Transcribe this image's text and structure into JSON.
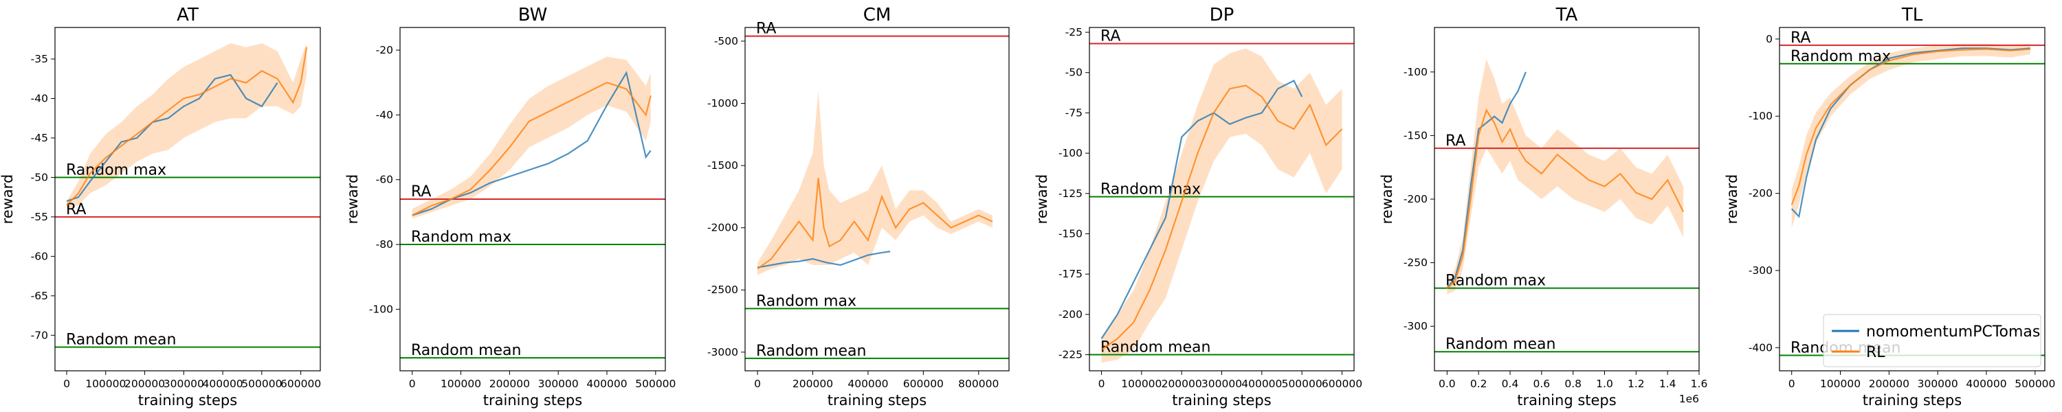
{
  "legend": [
    {
      "name": "nomomentumPCTomas",
      "color": "#1f77b4"
    },
    {
      "name": "RL",
      "color": "#ff7f0e"
    }
  ],
  "chart_data": [
    {
      "type": "line",
      "title": "AT",
      "xlabel": "training steps",
      "ylabel": "reward",
      "xlim": [
        -30000,
        650000
      ],
      "ylim": [
        -74.5,
        -31
      ],
      "xticks": [
        0,
        100000,
        200000,
        300000,
        400000,
        500000,
        600000
      ],
      "xtick_labels": [
        "0",
        "100000",
        "200000",
        "300000",
        "400000",
        "500000",
        "600000"
      ],
      "yticks": [
        -35,
        -40,
        -45,
        -50,
        -55,
        -60,
        -65,
        -70
      ],
      "ytick_labels": [
        "-35",
        "-40",
        "-45",
        "-50",
        "-55",
        "-60",
        "-65",
        "-70"
      ],
      "hlines": [
        {
          "label": "Random max",
          "y": -50.0,
          "color": "#008000"
        },
        {
          "label": "RA",
          "y": -55.0,
          "color": "#d62728"
        },
        {
          "label": "Random mean",
          "y": -71.5,
          "color": "#008000"
        }
      ],
      "series": [
        {
          "name": "nomomentumPCTomas",
          "color": "#1f77b4",
          "x": [
            0,
            30000,
            60000,
            100000,
            140000,
            180000,
            220000,
            260000,
            300000,
            340000,
            380000,
            420000,
            460000,
            500000,
            540000
          ],
          "y": [
            -53,
            -52.5,
            -50.5,
            -48,
            -45.5,
            -45,
            -43,
            -42.5,
            -41,
            -40,
            -37.5,
            -37,
            -40,
            -41,
            -38
          ]
        },
        {
          "name": "RL",
          "color": "#ff7f0e",
          "x": [
            0,
            30000,
            60000,
            100000,
            140000,
            180000,
            220000,
            260000,
            300000,
            340000,
            380000,
            420000,
            460000,
            500000,
            540000,
            580000,
            600000,
            615000
          ],
          "y": [
            -53.5,
            -52,
            -49.5,
            -47.5,
            -46,
            -44.5,
            -43,
            -41.5,
            -40,
            -39.5,
            -38.5,
            -37.5,
            -38,
            -36.5,
            -37.5,
            -40.5,
            -38,
            -33.5
          ],
          "band_low": [
            -54,
            -53.5,
            -52,
            -51,
            -49.5,
            -48,
            -47,
            -46.5,
            -45,
            -44,
            -43,
            -42.5,
            -42.5,
            -41,
            -41,
            -42,
            -41,
            -37
          ],
          "band_high": [
            -53,
            -50.5,
            -47,
            -44.5,
            -43,
            -41,
            -39.5,
            -37.5,
            -36,
            -35,
            -34,
            -33,
            -33.5,
            -33,
            -34,
            -38,
            -35,
            -33
          ]
        }
      ]
    },
    {
      "type": "line",
      "title": "BW",
      "xlabel": "training steps",
      "ylabel": "reward",
      "xlim": [
        -25000,
        520000
      ],
      "ylim": [
        -119,
        -13
      ],
      "xticks": [
        0,
        100000,
        200000,
        300000,
        400000,
        500000
      ],
      "xtick_labels": [
        "0",
        "100000",
        "200000",
        "300000",
        "400000",
        "500000"
      ],
      "yticks": [
        -20,
        -40,
        -60,
        -80,
        -100
      ],
      "ytick_labels": [
        "-20",
        "-40",
        "-60",
        "-80",
        "-100"
      ],
      "hlines": [
        {
          "label": "RA",
          "y": -66.0,
          "color": "#d62728"
        },
        {
          "label": "Random max",
          "y": -80.0,
          "color": "#008000"
        },
        {
          "label": "Random mean",
          "y": -115.0,
          "color": "#008000"
        }
      ],
      "series": [
        {
          "name": "nomomentumPCTomas",
          "color": "#1f77b4",
          "x": [
            0,
            40000,
            80000,
            120000,
            160000,
            200000,
            240000,
            280000,
            320000,
            360000,
            400000,
            440000,
            480000,
            490000
          ],
          "y": [
            -71,
            -69,
            -66,
            -64,
            -61,
            -59,
            -57,
            -55,
            -52,
            -48,
            -37,
            -27,
            -53,
            -51
          ]
        },
        {
          "name": "RL",
          "color": "#ff7f0e",
          "x": [
            0,
            40000,
            80000,
            120000,
            160000,
            200000,
            240000,
            280000,
            320000,
            360000,
            400000,
            440000,
            480000,
            490000
          ],
          "y": [
            -71,
            -68,
            -66,
            -63,
            -57,
            -50,
            -42,
            -39,
            -36,
            -33,
            -30,
            -32,
            -40,
            -34
          ],
          "band_low": [
            -72,
            -70,
            -68,
            -66,
            -62,
            -57,
            -50,
            -47,
            -44,
            -40,
            -37,
            -39,
            -48,
            -42
          ],
          "band_high": [
            -69,
            -66,
            -63,
            -59,
            -52,
            -43,
            -35,
            -31,
            -28,
            -25,
            -22,
            -23,
            -31,
            -27
          ]
        }
      ]
    },
    {
      "type": "line",
      "title": "CM",
      "xlabel": "training steps",
      "ylabel": "",
      "xlim": [
        -45000,
        910000
      ],
      "ylim": [
        -3150,
        -390
      ],
      "xticks": [
        0,
        200000,
        400000,
        600000,
        800000
      ],
      "xtick_labels": [
        "0",
        "200000",
        "400000",
        "600000",
        "800000"
      ],
      "yticks": [
        -500,
        -1000,
        -1500,
        -2000,
        -2500,
        -3000
      ],
      "ytick_labels": [
        "-500",
        "-1000",
        "-1500",
        "-2000",
        "-2500",
        "-3000"
      ],
      "hlines": [
        {
          "label": "RA",
          "y": -460,
          "color": "#d62728"
        },
        {
          "label": "Random max",
          "y": -2650,
          "color": "#008000"
        },
        {
          "label": "Random mean",
          "y": -3050,
          "color": "#008000"
        }
      ],
      "series": [
        {
          "name": "nomomentumPCTomas",
          "color": "#1f77b4",
          "x": [
            0,
            50000,
            100000,
            150000,
            200000,
            250000,
            300000,
            350000,
            400000,
            450000,
            480000
          ],
          "y": [
            -2320,
            -2300,
            -2280,
            -2270,
            -2250,
            -2280,
            -2300,
            -2260,
            -2220,
            -2200,
            -2190
          ]
        },
        {
          "name": "RL",
          "color": "#ff7f0e",
          "x": [
            0,
            50000,
            100000,
            150000,
            200000,
            220000,
            240000,
            260000,
            300000,
            350000,
            400000,
            450000,
            500000,
            550000,
            600000,
            650000,
            700000,
            750000,
            800000,
            850000
          ],
          "y": [
            -2330,
            -2250,
            -2100,
            -1950,
            -2100,
            -1600,
            -2000,
            -2150,
            -2100,
            -1950,
            -2100,
            -1750,
            -2000,
            -1850,
            -1800,
            -1900,
            -2000,
            -1950,
            -1900,
            -1950
          ],
          "band_low": [
            -2380,
            -2330,
            -2300,
            -2250,
            -2300,
            -2300,
            -2300,
            -2300,
            -2250,
            -2200,
            -2300,
            -2000,
            -2100,
            -1950,
            -1900,
            -2000,
            -2050,
            -2000,
            -1950,
            -2000
          ],
          "band_high": [
            -2280,
            -2100,
            -1900,
            -1700,
            -1400,
            -900,
            -1500,
            -1700,
            -1800,
            -1750,
            -1700,
            -1500,
            -1850,
            -1700,
            -1700,
            -1800,
            -1950,
            -1900,
            -1850,
            -1900
          ]
        }
      ]
    },
    {
      "type": "line",
      "title": "DP",
      "xlabel": "training steps",
      "ylabel": "reward",
      "xlim": [
        -30000,
        630000
      ],
      "ylim": [
        -235,
        -22
      ],
      "xticks": [
        0,
        100000,
        200000,
        300000,
        400000,
        500000,
        600000
      ],
      "xtick_labels": [
        "0",
        "100000",
        "200000",
        "300000",
        "400000",
        "500000",
        "600000"
      ],
      "yticks": [
        -25,
        -50,
        -75,
        -100,
        -125,
        -150,
        -175,
        -200,
        -225
      ],
      "ytick_labels": [
        "-25",
        "-50",
        "-75",
        "-100",
        "-125",
        "-150",
        "-175",
        "-200",
        "-225"
      ],
      "hlines": [
        {
          "label": "RA",
          "y": -32,
          "color": "#d62728"
        },
        {
          "label": "Random max",
          "y": -127,
          "color": "#008000"
        },
        {
          "label": "Random mean",
          "y": -225,
          "color": "#008000"
        }
      ],
      "series": [
        {
          "name": "nomomentumPCTomas",
          "color": "#1f77b4",
          "x": [
            0,
            40000,
            80000,
            120000,
            160000,
            200000,
            240000,
            280000,
            320000,
            360000,
            400000,
            440000,
            480000,
            500000
          ],
          "y": [
            -215,
            -200,
            -180,
            -160,
            -140,
            -90,
            -80,
            -75,
            -82,
            -78,
            -75,
            -60,
            -55,
            -65
          ]
        },
        {
          "name": "RL",
          "color": "#ff7f0e",
          "x": [
            0,
            40000,
            80000,
            120000,
            160000,
            200000,
            240000,
            280000,
            320000,
            360000,
            400000,
            440000,
            480000,
            520000,
            560000,
            600000
          ],
          "y": [
            -222,
            -215,
            -205,
            -185,
            -160,
            -130,
            -100,
            -75,
            -60,
            -58,
            -65,
            -80,
            -85,
            -70,
            -95,
            -85
          ],
          "band_low": [
            -230,
            -228,
            -222,
            -205,
            -190,
            -160,
            -130,
            -105,
            -90,
            -88,
            -95,
            -110,
            -115,
            -100,
            -125,
            -110
          ],
          "band_high": [
            -215,
            -200,
            -185,
            -160,
            -130,
            -100,
            -70,
            -45,
            -38,
            -35,
            -40,
            -55,
            -60,
            -50,
            -70,
            -60
          ]
        }
      ]
    },
    {
      "type": "line",
      "title": "TA",
      "xlabel": "training steps",
      "ylabel": "reward",
      "x_offset_label": "1e6",
      "xlim": [
        -0.08,
        1.6
      ],
      "ylim": [
        -335,
        -65
      ],
      "xticks": [
        0.0,
        0.2,
        0.4,
        0.6,
        0.8,
        1.0,
        1.2,
        1.4,
        1.6
      ],
      "xtick_labels": [
        "0.0",
        "0.2",
        "0.4",
        "0.6",
        "0.8",
        "1.0",
        "1.2",
        "1.4",
        "1.6"
      ],
      "yticks": [
        -100,
        -150,
        -200,
        -250,
        -300
      ],
      "ytick_labels": [
        "-100",
        "-150",
        "-200",
        "-250",
        "-300"
      ],
      "hlines": [
        {
          "label": "RA",
          "y": -160,
          "color": "#d62728"
        },
        {
          "label": "Random max",
          "y": -270,
          "color": "#008000"
        },
        {
          "label": "Random mean",
          "y": -320,
          "color": "#008000"
        }
      ],
      "series": [
        {
          "name": "nomomentumPCTomas",
          "color": "#1f77b4",
          "x": [
            0.0,
            0.05,
            0.1,
            0.15,
            0.2,
            0.25,
            0.3,
            0.35,
            0.4,
            0.45,
            0.5
          ],
          "y": [
            -270,
            -262,
            -240,
            -190,
            -145,
            -140,
            -135,
            -140,
            -125,
            -115,
            -100
          ]
        },
        {
          "name": "RL",
          "color": "#ff7f0e",
          "x": [
            0.0,
            0.05,
            0.1,
            0.15,
            0.2,
            0.25,
            0.3,
            0.35,
            0.4,
            0.45,
            0.5,
            0.6,
            0.7,
            0.8,
            0.9,
            1.0,
            1.1,
            1.2,
            1.3,
            1.4,
            1.5
          ],
          "y": [
            -270,
            -265,
            -245,
            -200,
            -150,
            -130,
            -140,
            -155,
            -145,
            -160,
            -170,
            -180,
            -165,
            -175,
            -185,
            -190,
            -180,
            -195,
            -200,
            -185,
            -210
          ],
          "band_low": [
            -275,
            -272,
            -255,
            -215,
            -175,
            -160,
            -170,
            -180,
            -170,
            -185,
            -190,
            -200,
            -190,
            -200,
            -205,
            -210,
            -200,
            -215,
            -220,
            -205,
            -230
          ],
          "band_high": [
            -265,
            -255,
            -230,
            -175,
            -120,
            -90,
            -105,
            -125,
            -120,
            -135,
            -150,
            -160,
            -145,
            -155,
            -165,
            -170,
            -160,
            -175,
            -180,
            -165,
            -190
          ]
        }
      ]
    },
    {
      "type": "line",
      "title": "TL",
      "xlabel": "training steps",
      "ylabel": "reward",
      "xlim": [
        -25000,
        520000
      ],
      "ylim": [
        -430,
        15
      ],
      "xticks": [
        0,
        100000,
        200000,
        300000,
        400000,
        500000
      ],
      "xtick_labels": [
        "0",
        "100000",
        "200000",
        "300000",
        "400000",
        "500000"
      ],
      "yticks": [
        0,
        -100,
        -200,
        -300,
        -400
      ],
      "ytick_labels": [
        "0",
        "-100",
        "-200",
        "-300",
        "-400"
      ],
      "hlines": [
        {
          "label": "RA",
          "y": -8,
          "color": "#d62728"
        },
        {
          "label": "Random max",
          "y": -32,
          "color": "#008000"
        },
        {
          "label": "Random mean",
          "y": -410,
          "color": "#008000"
        }
      ],
      "series": [
        {
          "name": "nomomentumPCTomas",
          "color": "#1f77b4",
          "x": [
            0,
            15000,
            30000,
            50000,
            80000,
            120000,
            160000,
            200000,
            250000,
            300000,
            350000,
            400000,
            450000,
            490000
          ],
          "y": [
            -220,
            -230,
            -180,
            -130,
            -90,
            -60,
            -40,
            -25,
            -18,
            -15,
            -12,
            -12,
            -14,
            -12
          ]
        },
        {
          "name": "RL",
          "color": "#ff7f0e",
          "x": [
            0,
            15000,
            30000,
            50000,
            80000,
            120000,
            160000,
            200000,
            250000,
            300000,
            350000,
            400000,
            450000,
            490000
          ],
          "y": [
            -215,
            -190,
            -150,
            -115,
            -85,
            -60,
            -40,
            -28,
            -20,
            -16,
            -14,
            -13,
            -15,
            -13
          ],
          "band_low": [
            -245,
            -215,
            -175,
            -135,
            -100,
            -72,
            -52,
            -40,
            -30,
            -26,
            -22,
            -22,
            -24,
            -20
          ],
          "band_high": [
            -195,
            -165,
            -125,
            -95,
            -70,
            -48,
            -30,
            -18,
            -12,
            -8,
            -6,
            -6,
            -8,
            -6
          ]
        }
      ]
    }
  ]
}
